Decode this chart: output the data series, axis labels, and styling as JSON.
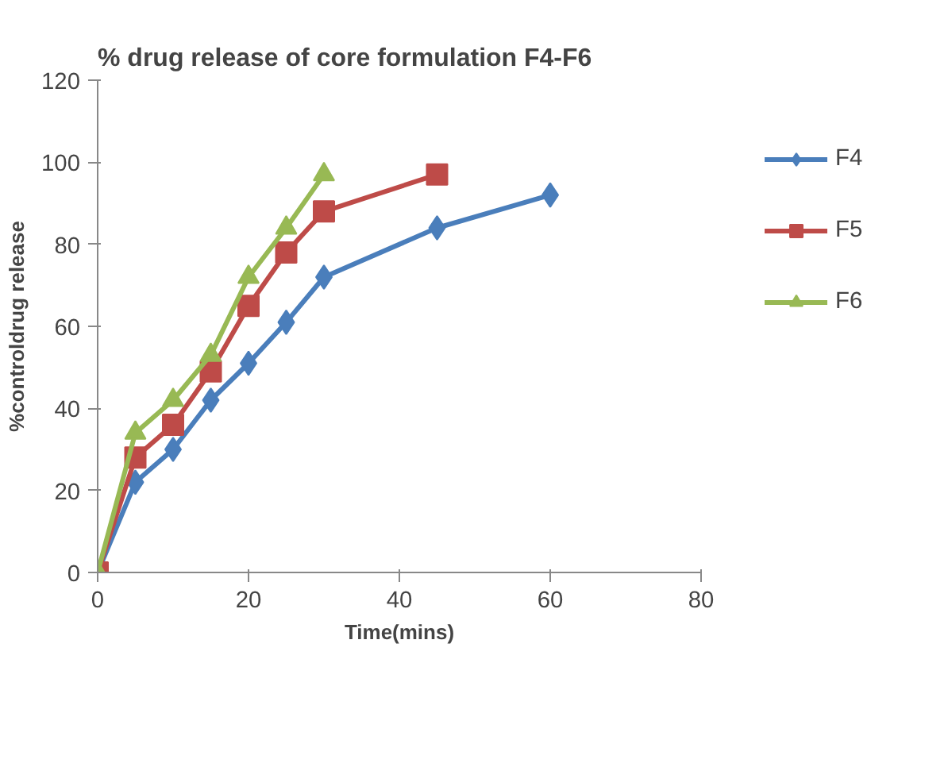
{
  "chart_data": {
    "type": "line",
    "title": "% drug release of core formulation F4-F6",
    "xlabel": "Time(mins)",
    "ylabel": "%controldrug release",
    "x": [
      0,
      5,
      10,
      15,
      20,
      25,
      30,
      45,
      60
    ],
    "series": [
      {
        "name": "F4",
        "color": "#4a7ebb",
        "marker": "diamond",
        "values": [
          0,
          22,
          30,
          42,
          51,
          61,
          72,
          84,
          92
        ]
      },
      {
        "name": "F5",
        "color": "#be4b48",
        "marker": "square",
        "x": [
          0,
          5,
          10,
          15,
          20,
          25,
          30,
          45
        ],
        "values": [
          0,
          28,
          36,
          49,
          65,
          78,
          88,
          97
        ]
      },
      {
        "name": "F6",
        "color": "#98b954",
        "marker": "triangle",
        "x": [
          0,
          5,
          10,
          15,
          20,
          25,
          30
        ],
        "values": [
          0,
          34,
          42,
          53,
          72,
          84,
          97
        ]
      }
    ],
    "xlim": [
      0,
      80
    ],
    "xticks": [
      0,
      20,
      40,
      60,
      80
    ],
    "ylim": [
      0,
      120
    ],
    "yticks": [
      0,
      20,
      40,
      60,
      80,
      100,
      120
    ],
    "grid": false,
    "legend": "right"
  }
}
